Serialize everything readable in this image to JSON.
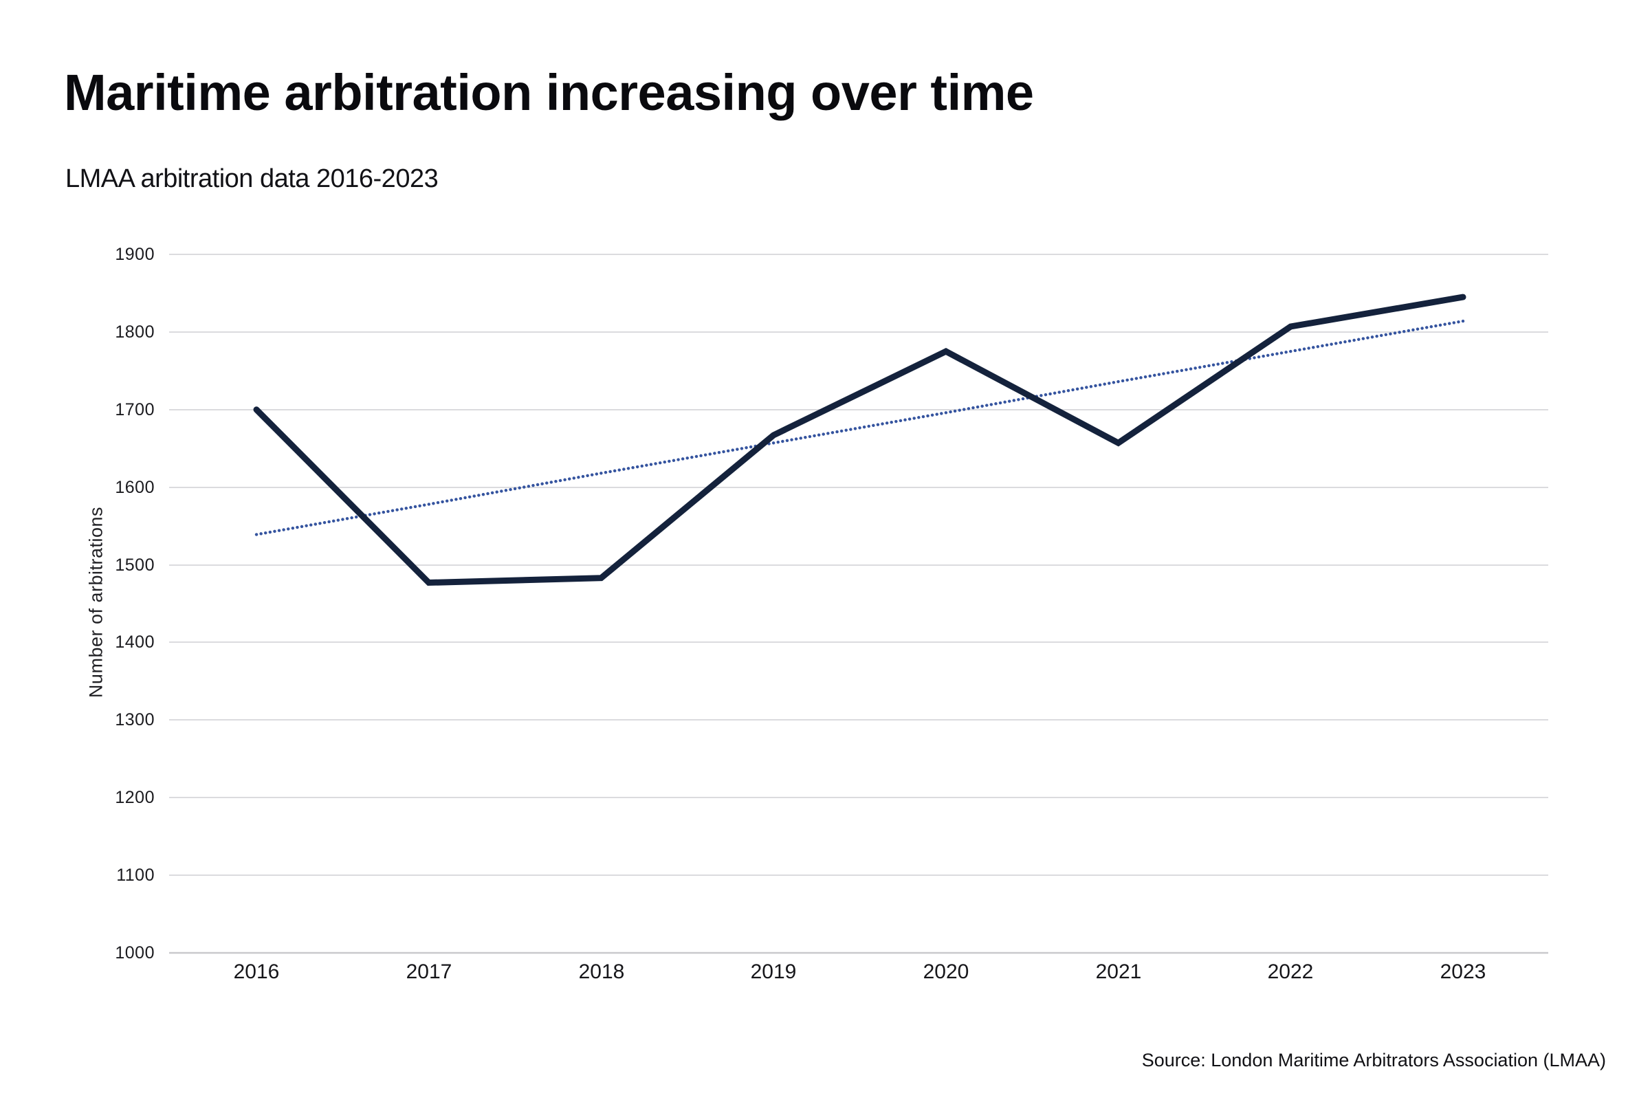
{
  "header": {
    "title": "Maritime arbitration increasing over time",
    "subtitle": "LMAA arbitration data 2016-2023"
  },
  "source_note": "Source: London Maritime Arbitrators Association (LMAA)",
  "colors": {
    "background": "#ffffff",
    "gridline": "#dbdbde",
    "axis_line": "#c9c9cc",
    "data_line": "#14223c",
    "trend_line": "#35549f",
    "text": "#101014"
  },
  "chart_data": {
    "type": "line",
    "title": "Maritime arbitration increasing over time",
    "subtitle": "LMAA arbitration data 2016-2023",
    "categories": [
      2016,
      2017,
      2018,
      2019,
      2020,
      2021,
      2022,
      2023
    ],
    "series": [
      {
        "name": "Number of arbitrations",
        "values": [
          1700,
          1477,
          1483,
          1667,
          1775,
          1657,
          1807,
          1845
        ],
        "color": "#14223c",
        "style": "solid"
      },
      {
        "name": "Linear trend",
        "values": [
          1539,
          1578,
          1618,
          1657,
          1696,
          1736,
          1775,
          1814
        ],
        "color": "#35549f",
        "style": "dotted"
      }
    ],
    "xlabel": "",
    "ylabel": "Number of arbitrations",
    "ylim": [
      1000,
      1900
    ],
    "y_ticks": [
      1900,
      1800,
      1700,
      1600,
      1500,
      1400,
      1300,
      1200,
      1100,
      1000
    ],
    "grid": "horizontal",
    "legend": "none"
  }
}
